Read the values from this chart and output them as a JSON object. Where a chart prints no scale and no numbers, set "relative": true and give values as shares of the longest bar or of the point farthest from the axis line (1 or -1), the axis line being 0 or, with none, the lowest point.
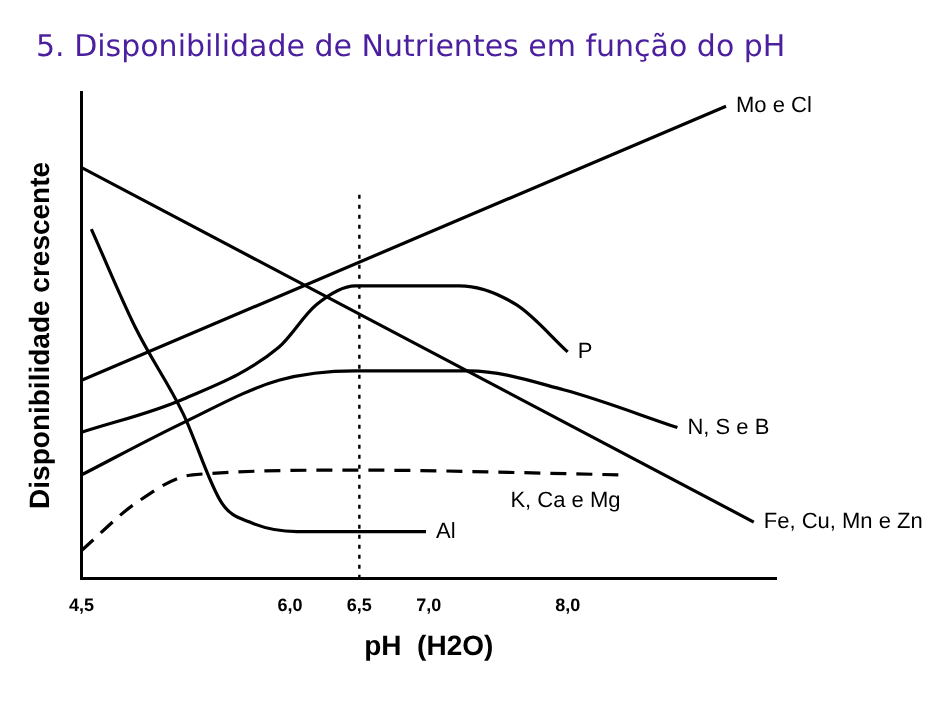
{
  "chart_data": {
    "type": "line",
    "title": "5. Disponibilidade de Nutrientes em função do pH",
    "xlabel": "pH  (H2O)",
    "ylabel": "Disponibilidade crescente",
    "relative": true,
    "xlim": [
      4.5,
      9.5
    ],
    "xticks": [
      {
        "value": 4.5,
        "label": "4,5"
      },
      {
        "value": 6.0,
        "label": "6,0"
      },
      {
        "value": 6.5,
        "label": "6,5"
      },
      {
        "value": 7.0,
        "label": "7,0"
      },
      {
        "value": 8.0,
        "label": "8,0"
      }
    ],
    "grid": false,
    "legend": false,
    "marker": "none",
    "ref_lines": [
      {
        "axis": "x",
        "value": 6.5,
        "line_style": "dotted",
        "color": "#000000"
      }
    ],
    "series": [
      {
        "name": "Mo e Cl",
        "color": "#000000",
        "line_style": "solid",
        "x": [
          4.5,
          9.14
        ],
        "values": [
          0.42,
          1.0
        ]
      },
      {
        "name": "Fe, Cu, Mn e Zn",
        "color": "#000000",
        "line_style": "solid",
        "x": [
          4.5,
          9.34
        ],
        "values": [
          0.87,
          0.12
        ]
      },
      {
        "name": "P",
        "color": "#000000",
        "line_style": "solid",
        "x": [
          4.5,
          5.23,
          5.92,
          6.19,
          6.47,
          7.22,
          7.63,
          8.0
        ],
        "values": [
          0.31,
          0.38,
          0.49,
          0.58,
          0.62,
          0.62,
          0.58,
          0.48
        ]
      },
      {
        "name": "N, S e B",
        "color": "#000000",
        "line_style": "solid",
        "x": [
          4.5,
          5.23,
          5.92,
          6.47,
          7.29,
          7.97,
          8.79
        ],
        "values": [
          0.22,
          0.33,
          0.42,
          0.44,
          0.44,
          0.4,
          0.32
        ]
      },
      {
        "name": "K, Ca e Mg",
        "color": "#000000",
        "line_style": "dashed",
        "x": [
          4.5,
          4.89,
          5.3,
          6.47,
          8.38
        ],
        "values": [
          0.06,
          0.16,
          0.22,
          0.23,
          0.22
        ]
      },
      {
        "name": "Al",
        "color": "#000000",
        "line_style": "solid",
        "x": [
          4.57,
          4.89,
          5.23,
          5.51,
          5.71,
          6.05,
          6.98
        ],
        "values": [
          0.74,
          0.53,
          0.35,
          0.16,
          0.12,
          0.1,
          0.1
        ]
      }
    ]
  }
}
